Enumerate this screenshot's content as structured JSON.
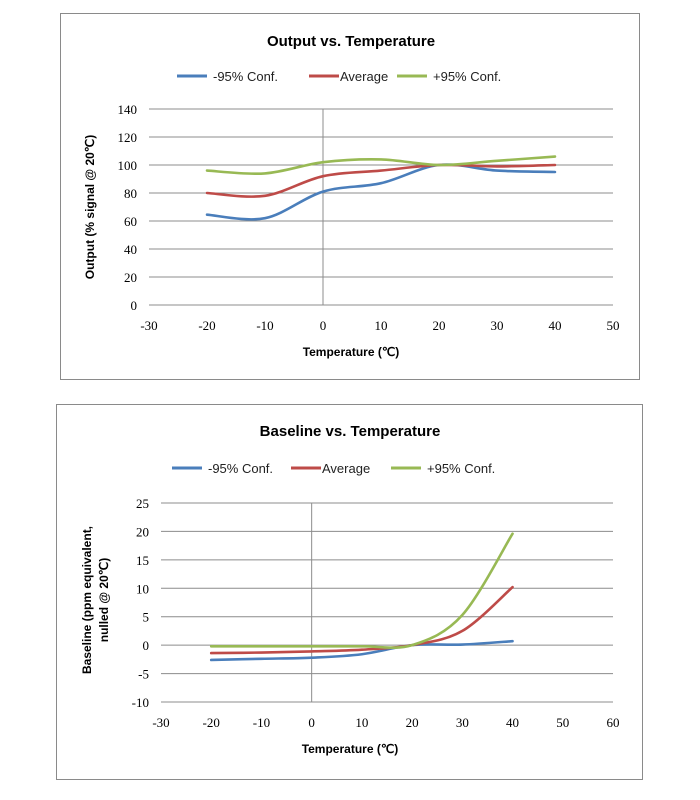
{
  "chart_data": [
    {
      "type": "line",
      "title": "Output vs. Temperature",
      "xlabel": "Temperature (℃)",
      "ylabel": "Output (% signal @ 20℃)",
      "xlim": [
        -30,
        50
      ],
      "ylim": [
        0,
        140
      ],
      "xticks": [
        -30,
        -20,
        -10,
        0,
        10,
        20,
        30,
        40,
        50
      ],
      "yticks": [
        0,
        20,
        40,
        60,
        80,
        100,
        120,
        140
      ],
      "grid": true,
      "legend": "top",
      "smooth": true,
      "x": [
        -20,
        -10,
        0,
        10,
        20,
        30,
        40
      ],
      "series": [
        {
          "name": "-95% Conf.",
          "color": "#4a7ebb",
          "values": [
            64.5,
            62,
            81,
            87,
            100,
            96,
            95
          ]
        },
        {
          "name": "Average",
          "color": "#be4b48",
          "values": [
            80,
            78,
            92,
            96,
            100,
            99,
            100
          ]
        },
        {
          "name": "+95% Conf.",
          "color": "#98b954",
          "values": [
            96,
            94,
            102,
            104,
            100,
            103,
            106
          ]
        }
      ]
    },
    {
      "type": "line",
      "title": "Baseline vs. Temperature",
      "xlabel": "Temperature (℃)",
      "ylabel": "Baseline (ppm equivalent, nulled @ 20℃)",
      "ylabel_lines": [
        "Baseline (ppm equivalent,",
        "nulled @ 20℃)"
      ],
      "xlim": [
        -30,
        60
      ],
      "ylim": [
        -10,
        25
      ],
      "xticks": [
        -30,
        -20,
        -10,
        0,
        10,
        20,
        30,
        40,
        50,
        60
      ],
      "yticks": [
        -10,
        -5,
        0,
        5,
        10,
        15,
        20,
        25
      ],
      "grid": true,
      "legend": "top",
      "smooth": true,
      "x": [
        -20,
        -10,
        0,
        10,
        20,
        30,
        40
      ],
      "series": [
        {
          "name": "-95% Conf.",
          "color": "#4a7ebb",
          "values": [
            -2.6,
            -2.4,
            -2.2,
            -1.6,
            0,
            0.1,
            0.7
          ]
        },
        {
          "name": "Average",
          "color": "#be4b48",
          "values": [
            -1.4,
            -1.3,
            -1.1,
            -0.8,
            0,
            2.5,
            10.2
          ]
        },
        {
          "name": "+95% Conf.",
          "color": "#98b954",
          "values": [
            -0.2,
            -0.2,
            -0.2,
            -0.2,
            0,
            5.3,
            19.6
          ]
        }
      ]
    }
  ]
}
